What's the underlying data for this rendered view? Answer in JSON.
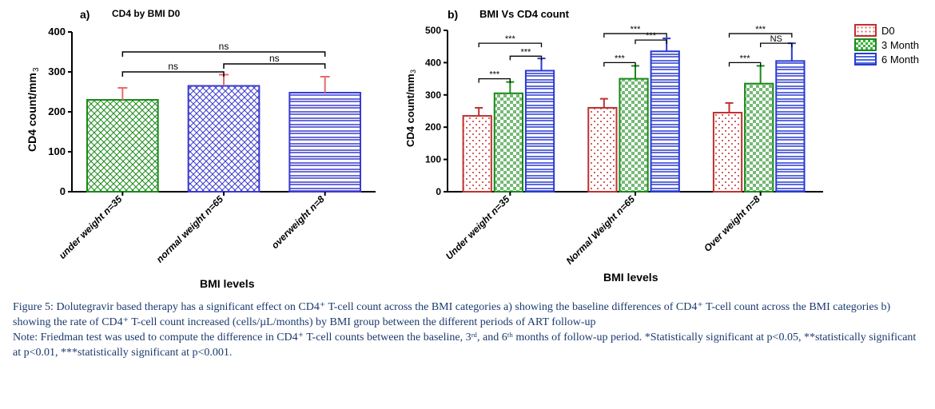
{
  "panel_a": {
    "label": "a)",
    "title": "CD4 by BMI D0",
    "type": "bar",
    "ylabel": "CD4 count/mm",
    "ylabel_sup": "3",
    "xlabel": "BMI levels",
    "ylim": [
      0,
      400
    ],
    "ytick_step": 100,
    "categories": [
      "under weight n=35",
      "normal weight n=65",
      "overweight n=8"
    ],
    "values": [
      230,
      265,
      248
    ],
    "errors": [
      30,
      28,
      40
    ],
    "bar_fill": [
      "#7ed87e",
      "#9a9af2",
      "#9a9af2"
    ],
    "bar_pattern": [
      "crosshatch",
      "crosshatch",
      "hstripe"
    ],
    "bar_stroke": [
      "#1a8a1a",
      "#3a3ad0",
      "#3a3ad0"
    ],
    "error_color": [
      "#e86a6a",
      "#e86a6a",
      "#e86a6a"
    ],
    "bar_width": 0.7,
    "sig": [
      {
        "from": 0,
        "to": 1,
        "label": "ns",
        "y": 300
      },
      {
        "from": 1,
        "to": 2,
        "label": "ns",
        "y": 320
      },
      {
        "from": 0,
        "to": 2,
        "label": "ns",
        "y": 350
      }
    ],
    "axis_color": "#000000",
    "plot_bg": "#ffffff"
  },
  "panel_b": {
    "label": "b)",
    "title": "BMI Vs CD4 count",
    "type": "grouped-bar",
    "ylabel": "CD4 count/mm",
    "ylabel_sup": "3",
    "xlabel": "BMI levels",
    "ylim": [
      0,
      500
    ],
    "ytick_step": 100,
    "groups": [
      "Under weight n=35",
      "Normal Weight n=65",
      "Over weight n=8"
    ],
    "series": [
      {
        "name": "D0",
        "color": "#e36a6a",
        "stroke": "#c03030",
        "pattern": "dots",
        "values": [
          235,
          260,
          245
        ],
        "errors": [
          25,
          28,
          30
        ]
      },
      {
        "name": "3 Month",
        "color": "#3bb23b",
        "stroke": "#1a8a1a",
        "pattern": "check",
        "values": [
          305,
          350,
          335
        ],
        "errors": [
          35,
          40,
          55
        ]
      },
      {
        "name": "6 Month",
        "color": "#4a6ae0",
        "stroke": "#2a3ad0",
        "pattern": "hstripe",
        "values": [
          375,
          435,
          405
        ],
        "errors": [
          38,
          40,
          55
        ]
      }
    ],
    "sig": [
      {
        "group": 0,
        "from": 0,
        "to": 1,
        "label": "***",
        "y": 350
      },
      {
        "group": 0,
        "from": 1,
        "to": 2,
        "label": "***",
        "y": 420
      },
      {
        "group": 0,
        "from": 0,
        "to": 2,
        "label": "***",
        "y": 460
      },
      {
        "group": 1,
        "from": 0,
        "to": 1,
        "label": "***",
        "y": 400
      },
      {
        "group": 1,
        "from": 1,
        "to": 2,
        "label": "***",
        "y": 470
      },
      {
        "group": 1,
        "from": 0,
        "to": 2,
        "label": "***",
        "y": 490
      },
      {
        "group": 2,
        "from": 0,
        "to": 1,
        "label": "***",
        "y": 400
      },
      {
        "group": 2,
        "from": 1,
        "to": 2,
        "label": "NS",
        "y": 460
      },
      {
        "group": 2,
        "from": 0,
        "to": 2,
        "label": "***",
        "y": 490
      }
    ],
    "legend": [
      "D0",
      "3 Month",
      "6 Month"
    ],
    "legend_colors": [
      "#e36a6a",
      "#3bb23b",
      "#4a6ae0"
    ],
    "legend_stroke": [
      "#c03030",
      "#1a8a1a",
      "#2a3ad0"
    ],
    "axis_color": "#000000",
    "plot_bg": "#ffffff"
  },
  "caption": {
    "fig_label": "Figure 5:",
    "main": "Dolutegravir based therapy has a significant effect on CD4⁺ T-cell count across the BMI categories a) showing the baseline differences of CD4⁺ T-cell count across the BMI categories b) showing the rate of CD4⁺ T-cell count increased (cells/µL/months) by BMI group between the different periods of ART follow-up",
    "note_label": "Note:",
    "note": "Friedman test was used to compute the difference in CD4⁺ T-cell counts between the baseline, 3ʳᵈ, and 6ᵗʰ months of follow-up period. *Statistically significant at p<0.05, **statistically significant at p<0.01, ***statistically significant at p<0.001."
  }
}
